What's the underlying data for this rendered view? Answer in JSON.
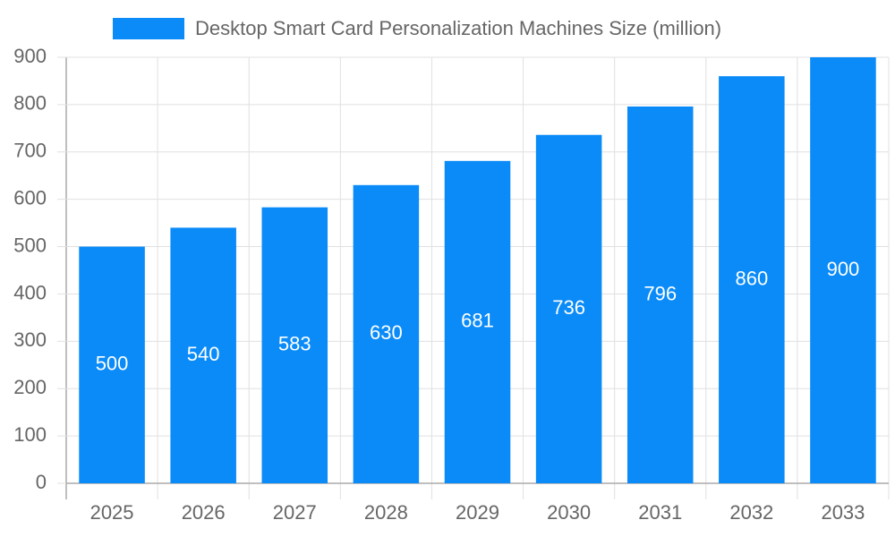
{
  "chart_data": {
    "type": "bar",
    "categories": [
      "2025",
      "2026",
      "2027",
      "2028",
      "2029",
      "2030",
      "2031",
      "2032",
      "2033"
    ],
    "series": [
      {
        "name": "Desktop Smart Card Personalization Machines Size (million)",
        "color": "#0a8bf8",
        "values": [
          500,
          540,
          583,
          630,
          681,
          736,
          796,
          860,
          900
        ]
      }
    ],
    "ylim": [
      0,
      900
    ],
    "yticks": [
      0,
      100,
      200,
      300,
      400,
      500,
      600,
      700,
      800,
      900
    ],
    "grid": true,
    "legend": "top"
  }
}
